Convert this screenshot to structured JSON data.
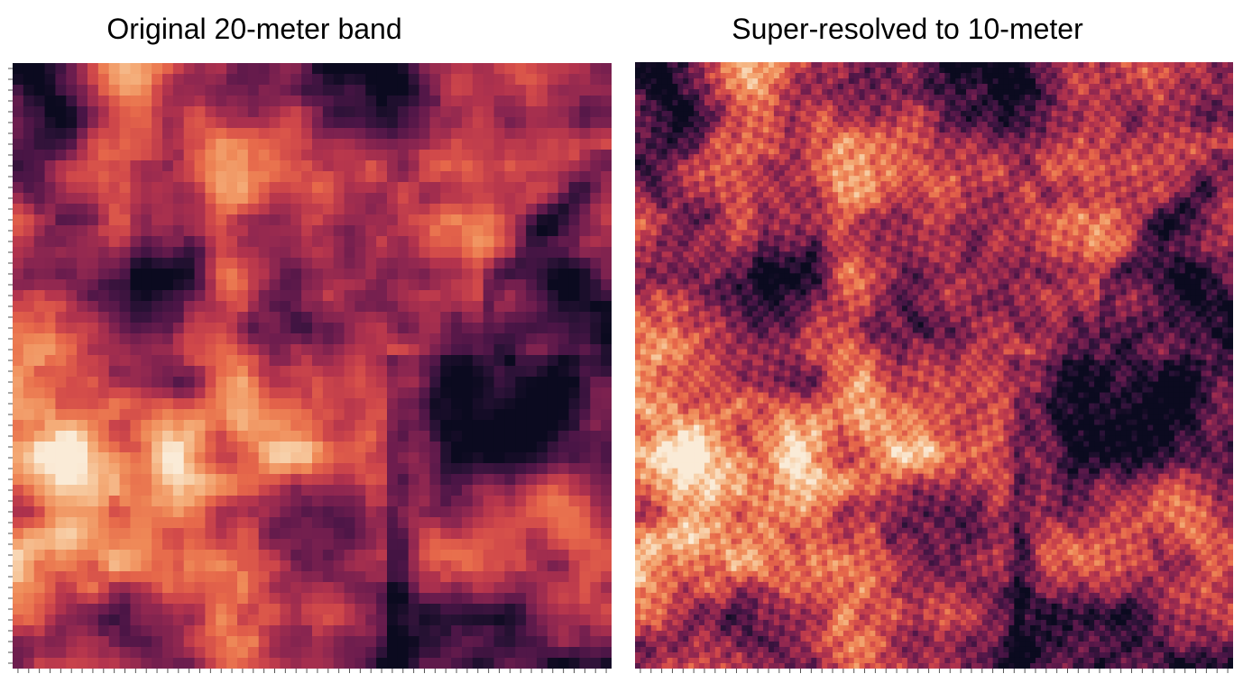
{
  "colors": {
    "colormap": [
      "#0b0a1f",
      "#2a1236",
      "#4a1546",
      "#6d1d4e",
      "#8f2750",
      "#b2334d",
      "#d1494a",
      "#e6674a",
      "#ef8a58",
      "#f4ac78",
      "#f7cda5",
      "#faebd7"
    ],
    "axis": "#555555",
    "background": "#ffffff"
  },
  "chart_data": [
    {
      "type": "heatmap",
      "title": "Original 20-meter band",
      "grid": false,
      "resolution": "20-meter",
      "xlabel": "",
      "ylabel": ""
    },
    {
      "type": "heatmap",
      "title": "Super-resolved to 10-meter",
      "grid": false,
      "resolution": "10-meter",
      "xlabel": "",
      "ylabel": ""
    }
  ]
}
